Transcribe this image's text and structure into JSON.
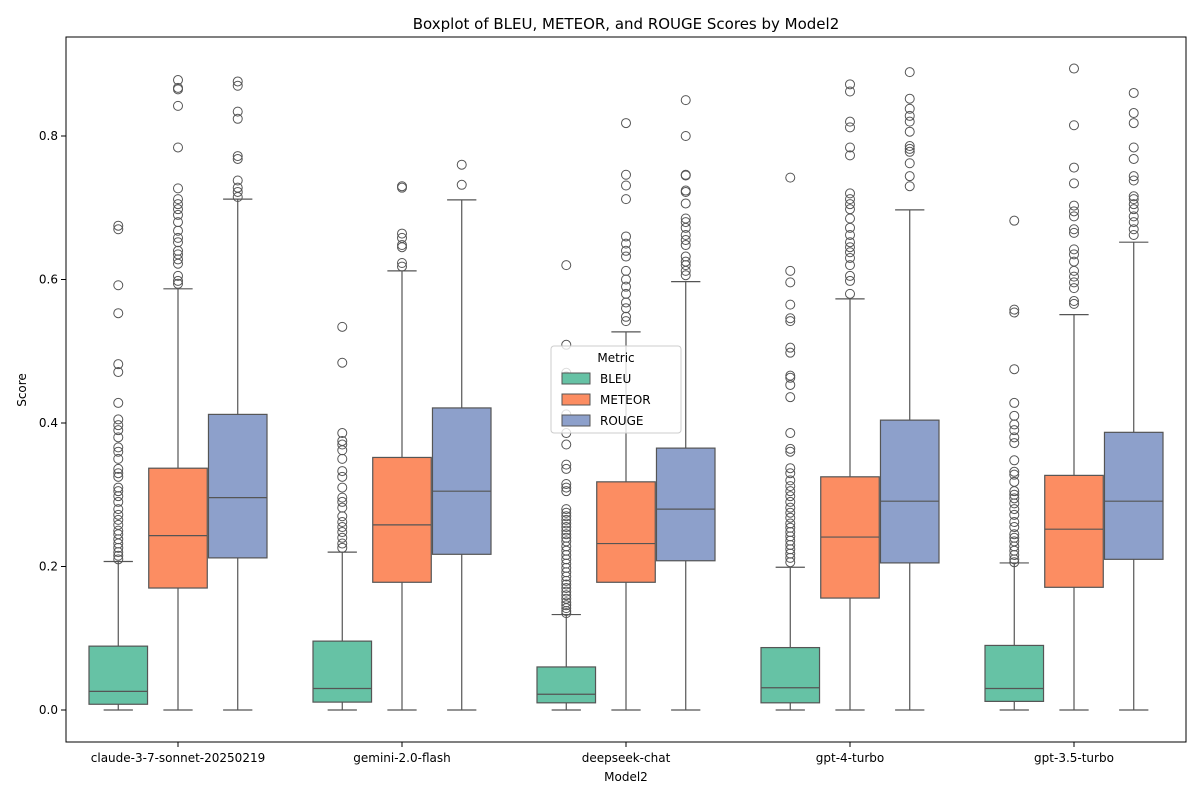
{
  "chart_data": {
    "type": "box",
    "title": "Boxplot of BLEU, METEOR, and ROUGE Scores by Model2",
    "xlabel": "Model2",
    "ylabel": "Score",
    "ylim": [
      -0.045,
      0.94
    ],
    "yticks": [
      0.0,
      0.2,
      0.4,
      0.6,
      0.8
    ],
    "ytick_labels": [
      "0.0",
      "0.2",
      "0.4",
      "0.6",
      "0.8"
    ],
    "categories": [
      "claude-3-7-sonnet-20250219",
      "gemini-2.0-flash",
      "deepseek-chat",
      "gpt-4-turbo",
      "gpt-3.5-turbo"
    ],
    "legend": {
      "title": "Metric",
      "placement": "center"
    },
    "series": [
      {
        "name": "BLEU",
        "color": "#66c2a5",
        "boxes": [
          {
            "whislo": 0.0,
            "q1": 0.008,
            "med": 0.026,
            "q3": 0.089,
            "whishi": 0.207,
            "fliers": [
              0.675,
              0.67,
              0.592,
              0.553,
              0.482,
              0.471,
              0.428,
              0.405,
              0.397,
              0.39,
              0.38,
              0.366,
              0.36,
              0.35,
              0.336,
              0.33,
              0.325,
              0.31,
              0.305,
              0.298,
              0.29,
              0.28,
              0.272,
              0.265,
              0.258,
              0.25,
              0.245,
              0.238,
              0.232,
              0.226,
              0.22,
              0.215,
              0.21
            ]
          },
          {
            "whislo": 0.0,
            "q1": 0.011,
            "med": 0.03,
            "q3": 0.096,
            "whishi": 0.22,
            "fliers": [
              0.534,
              0.484,
              0.386,
              0.375,
              0.37,
              0.362,
              0.35,
              0.333,
              0.325,
              0.31,
              0.296,
              0.29,
              0.282,
              0.27,
              0.262,
              0.255,
              0.248,
              0.24,
              0.232,
              0.226
            ]
          },
          {
            "whislo": 0.0,
            "q1": 0.01,
            "med": 0.022,
            "q3": 0.06,
            "whishi": 0.133,
            "fliers": [
              0.62,
              0.509,
              0.47,
              0.465,
              0.412,
              0.386,
              0.37,
              0.342,
              0.336,
              0.315,
              0.31,
              0.305,
              0.28,
              0.275,
              0.27,
              0.265,
              0.26,
              0.255,
              0.25,
              0.245,
              0.24,
              0.235,
              0.228,
              0.222,
              0.216,
              0.21,
              0.204,
              0.198,
              0.192,
              0.186,
              0.18,
              0.175,
              0.17,
              0.165,
              0.16,
              0.155,
              0.15,
              0.146,
              0.142,
              0.138,
              0.135
            ]
          },
          {
            "whislo": 0.0,
            "q1": 0.01,
            "med": 0.031,
            "q3": 0.087,
            "whishi": 0.199,
            "fliers": [
              0.742,
              0.612,
              0.596,
              0.565,
              0.546,
              0.542,
              0.505,
              0.498,
              0.466,
              0.463,
              0.453,
              0.436,
              0.386,
              0.364,
              0.36,
              0.337,
              0.33,
              0.32,
              0.312,
              0.305,
              0.298,
              0.29,
              0.282,
              0.275,
              0.268,
              0.26,
              0.254,
              0.248,
              0.242,
              0.236,
              0.23,
              0.224,
              0.218,
              0.212,
              0.206
            ]
          },
          {
            "whislo": 0.0,
            "q1": 0.012,
            "med": 0.03,
            "q3": 0.09,
            "whishi": 0.205,
            "fliers": [
              0.682,
              0.558,
              0.554,
              0.475,
              0.428,
              0.41,
              0.398,
              0.39,
              0.38,
              0.372,
              0.348,
              0.332,
              0.328,
              0.318,
              0.305,
              0.3,
              0.295,
              0.288,
              0.28,
              0.272,
              0.262,
              0.255,
              0.245,
              0.24,
              0.235,
              0.228,
              0.222,
              0.216,
              0.21,
              0.206
            ]
          }
        ]
      },
      {
        "name": "METEOR",
        "color": "#fc8d62",
        "boxes": [
          {
            "whislo": 0.0,
            "q1": 0.17,
            "med": 0.243,
            "q3": 0.337,
            "whishi": 0.587,
            "fliers": [
              0.878,
              0.867,
              0.865,
              0.842,
              0.784,
              0.727,
              0.712,
              0.705,
              0.698,
              0.69,
              0.68,
              0.668,
              0.658,
              0.652,
              0.64,
              0.635,
              0.628,
              0.622,
              0.605,
              0.598,
              0.594
            ]
          },
          {
            "whislo": 0.0,
            "q1": 0.178,
            "med": 0.258,
            "q3": 0.352,
            "whishi": 0.612,
            "fliers": [
              0.73,
              0.728,
              0.664,
              0.658,
              0.648,
              0.645,
              0.623,
              0.618
            ]
          },
          {
            "whislo": 0.0,
            "q1": 0.178,
            "med": 0.232,
            "q3": 0.318,
            "whishi": 0.527,
            "fliers": [
              0.818,
              0.746,
              0.731,
              0.712,
              0.66,
              0.65,
              0.64,
              0.632,
              0.612,
              0.6,
              0.59,
              0.58,
              0.568,
              0.56,
              0.548,
              0.542
            ]
          },
          {
            "whislo": 0.0,
            "q1": 0.156,
            "med": 0.241,
            "q3": 0.325,
            "whishi": 0.573,
            "fliers": [
              0.872,
              0.862,
              0.82,
              0.812,
              0.784,
              0.773,
              0.72,
              0.712,
              0.705,
              0.698,
              0.685,
              0.672,
              0.662,
              0.652,
              0.645,
              0.638,
              0.63,
              0.62,
              0.605,
              0.598,
              0.58
            ]
          },
          {
            "whislo": 0.0,
            "q1": 0.171,
            "med": 0.252,
            "q3": 0.327,
            "whishi": 0.551,
            "fliers": [
              0.894,
              0.815,
              0.756,
              0.734,
              0.703,
              0.695,
              0.688,
              0.67,
              0.665,
              0.642,
              0.635,
              0.625,
              0.612,
              0.604,
              0.596,
              0.588,
              0.57,
              0.566
            ]
          }
        ]
      },
      {
        "name": "ROUGE",
        "color": "#8da0cb",
        "boxes": [
          {
            "whislo": 0.0,
            "q1": 0.212,
            "med": 0.296,
            "q3": 0.412,
            "whishi": 0.712,
            "fliers": [
              0.876,
              0.87,
              0.834,
              0.824,
              0.772,
              0.768,
              0.738,
              0.728,
              0.722,
              0.715
            ]
          },
          {
            "whislo": 0.0,
            "q1": 0.217,
            "med": 0.305,
            "q3": 0.421,
            "whishi": 0.711,
            "fliers": [
              0.76,
              0.732
            ]
          },
          {
            "whislo": 0.0,
            "q1": 0.208,
            "med": 0.28,
            "q3": 0.365,
            "whishi": 0.597,
            "fliers": [
              0.85,
              0.8,
              0.746,
              0.745,
              0.724,
              0.722,
              0.706,
              0.685,
              0.68,
              0.672,
              0.662,
              0.655,
              0.648,
              0.632,
              0.625,
              0.62,
              0.612,
              0.606
            ]
          },
          {
            "whislo": 0.0,
            "q1": 0.205,
            "med": 0.291,
            "q3": 0.404,
            "whishi": 0.697,
            "fliers": [
              0.889,
              0.852,
              0.838,
              0.828,
              0.82,
              0.806,
              0.786,
              0.782,
              0.778,
              0.762,
              0.744,
              0.73
            ]
          },
          {
            "whislo": 0.0,
            "q1": 0.21,
            "med": 0.291,
            "q3": 0.387,
            "whishi": 0.652,
            "fliers": [
              0.86,
              0.832,
              0.818,
              0.784,
              0.768,
              0.744,
              0.738,
              0.716,
              0.712,
              0.705,
              0.698,
              0.688,
              0.68,
              0.67,
              0.662
            ]
          }
        ]
      }
    ]
  }
}
